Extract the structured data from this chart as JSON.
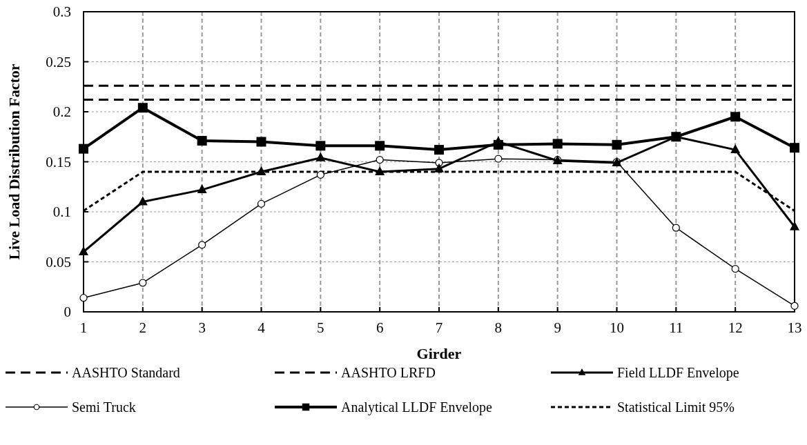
{
  "chart_data": {
    "type": "line",
    "xlabel": "Girder",
    "ylabel": "Live Load Distribution Factor",
    "x": [
      1,
      2,
      3,
      4,
      5,
      6,
      7,
      8,
      9,
      10,
      11,
      12,
      13
    ],
    "xlim": [
      1,
      13
    ],
    "xticks": [
      1,
      2,
      3,
      4,
      5,
      6,
      7,
      8,
      9,
      10,
      11,
      12,
      13
    ],
    "ylim": [
      0,
      0.3
    ],
    "yticks": [
      0,
      0.05,
      0.1,
      0.15,
      0.2,
      0.25,
      0.3
    ],
    "grid": true,
    "legend": "bottom",
    "series": [
      {
        "name": "AASHTO Standard",
        "color": "#000000",
        "line_style": "dashed",
        "marker": "none",
        "values": [
          0.212,
          0.212,
          0.212,
          0.212,
          0.212,
          0.212,
          0.212,
          0.212,
          0.212,
          0.212,
          0.212,
          0.212,
          0.212
        ]
      },
      {
        "name": "AASHTO LRFD",
        "color": "#000000",
        "line_style": "dashed",
        "marker": "none",
        "values": [
          0.226,
          0.226,
          0.226,
          0.226,
          0.226,
          0.226,
          0.226,
          0.226,
          0.226,
          0.226,
          0.226,
          0.226,
          0.226
        ]
      },
      {
        "name": "Field LLDF Envelope",
        "color": "#000000",
        "line_style": "solid",
        "marker": "triangle",
        "values": [
          0.06,
          0.11,
          0.122,
          0.14,
          0.154,
          0.14,
          0.143,
          0.17,
          0.151,
          0.149,
          0.175,
          0.162,
          0.085
        ]
      },
      {
        "name": "Semi Truck",
        "color": "#000000",
        "line_style": "solid",
        "marker": "circle",
        "values": [
          0.014,
          0.029,
          0.067,
          0.108,
          0.137,
          0.152,
          0.149,
          0.153,
          0.152,
          0.15,
          0.084,
          0.043,
          0.006
        ]
      },
      {
        "name": "Analytical LLDF Envelope",
        "color": "#000000",
        "line_style": "solid",
        "marker": "square",
        "values": [
          0.163,
          0.204,
          0.171,
          0.17,
          0.166,
          0.166,
          0.162,
          0.167,
          0.168,
          0.167,
          0.175,
          0.195,
          0.164
        ]
      },
      {
        "name": "Statistical Limit 95%",
        "color": "#000000",
        "line_style": "dotted",
        "marker": "none",
        "values": [
          0.101,
          0.14,
          0.14,
          0.14,
          0.14,
          0.14,
          0.14,
          0.14,
          0.14,
          0.14,
          0.14,
          0.14,
          0.101
        ]
      }
    ]
  }
}
